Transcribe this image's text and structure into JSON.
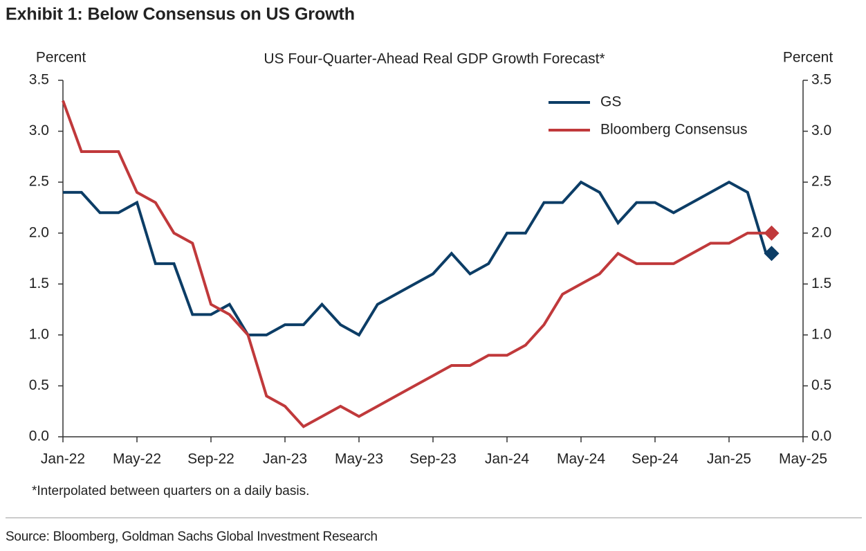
{
  "chart_data": {
    "type": "line",
    "title": "Exhibit 1: Below Consensus on US Growth",
    "subtitle": "US Four-Quarter-Ahead Real GDP Growth Forecast*",
    "y_label": "Percent",
    "y2_label": "Percent",
    "footnote": "*Interpolated between quarters on a daily basis.",
    "source": "Source: Bloomberg, Goldman Sachs Global Investment Research",
    "x": [
      "2022-01",
      "2022-02",
      "2022-03",
      "2022-04",
      "2022-05",
      "2022-06",
      "2022-07",
      "2022-08",
      "2022-09",
      "2022-10",
      "2022-11",
      "2022-12",
      "2023-01",
      "2023-02",
      "2023-03",
      "2023-04",
      "2023-05",
      "2023-06",
      "2023-07",
      "2023-08",
      "2023-09",
      "2023-10",
      "2023-11",
      "2023-12",
      "2024-01",
      "2024-02",
      "2024-03",
      "2024-04",
      "2024-05",
      "2024-06",
      "2024-07",
      "2024-08",
      "2024-09",
      "2024-10",
      "2024-11",
      "2024-12",
      "2025-01",
      "2025-02",
      "2025-03"
    ],
    "xlim": [
      "2022-01",
      "2025-05"
    ],
    "xticks": [
      {
        "value": "2022-01",
        "label": "Jan-22"
      },
      {
        "value": "2022-05",
        "label": "May-22"
      },
      {
        "value": "2022-09",
        "label": "Sep-22"
      },
      {
        "value": "2023-01",
        "label": "Jan-23"
      },
      {
        "value": "2023-05",
        "label": "May-23"
      },
      {
        "value": "2023-09",
        "label": "Sep-23"
      },
      {
        "value": "2024-01",
        "label": "Jan-24"
      },
      {
        "value": "2024-05",
        "label": "May-24"
      },
      {
        "value": "2024-09",
        "label": "Sep-24"
      },
      {
        "value": "2025-01",
        "label": "Jan-25"
      },
      {
        "value": "2025-05",
        "label": "May-25"
      }
    ],
    "ylim": [
      0,
      3.5
    ],
    "yticks": [
      {
        "value": 0,
        "label": "0.0"
      },
      0.5,
      {
        "value": 1,
        "label": "1.0"
      },
      1.5,
      {
        "value": 2,
        "label": "2.0"
      },
      2.5,
      {
        "value": 3,
        "label": "3.0"
      },
      3.5
    ],
    "y2lim": [
      0,
      3.5
    ],
    "y2ticks": [
      {
        "value": 0,
        "label": "0.0"
      },
      0.5,
      {
        "value": 1,
        "label": "1.0"
      },
      1.5,
      {
        "value": 2,
        "label": "2.0"
      },
      2.5,
      {
        "value": 3,
        "label": "3.0"
      },
      3.5
    ],
    "legend": "upper right",
    "end_marker": "diamond",
    "series": [
      {
        "name": "GS",
        "color": "#0c3d66",
        "values": [
          2.4,
          2.4,
          2.2,
          2.2,
          2.3,
          1.7,
          1.7,
          1.2,
          1.2,
          1.3,
          1.0,
          1.0,
          1.1,
          1.1,
          1.3,
          1.1,
          1.0,
          1.3,
          1.4,
          1.5,
          1.6,
          1.8,
          1.6,
          1.7,
          2.0,
          2.0,
          2.3,
          2.3,
          2.5,
          2.4,
          2.1,
          2.3,
          2.3,
          2.2,
          2.3,
          2.4,
          2.5,
          2.4,
          1.8
        ]
      },
      {
        "name": "Bloomberg Consensus",
        "color": "#c0393b",
        "values": [
          3.3,
          2.8,
          2.8,
          2.8,
          2.4,
          2.3,
          2.0,
          1.9,
          1.3,
          1.2,
          1.0,
          0.4,
          0.3,
          0.1,
          0.2,
          0.3,
          0.2,
          0.3,
          0.4,
          0.5,
          0.6,
          0.7,
          0.7,
          0.8,
          0.8,
          0.9,
          1.1,
          1.4,
          1.5,
          1.6,
          1.8,
          1.7,
          1.7,
          1.7,
          1.8,
          1.9,
          1.9,
          2.0,
          2.0
        ]
      }
    ]
  }
}
